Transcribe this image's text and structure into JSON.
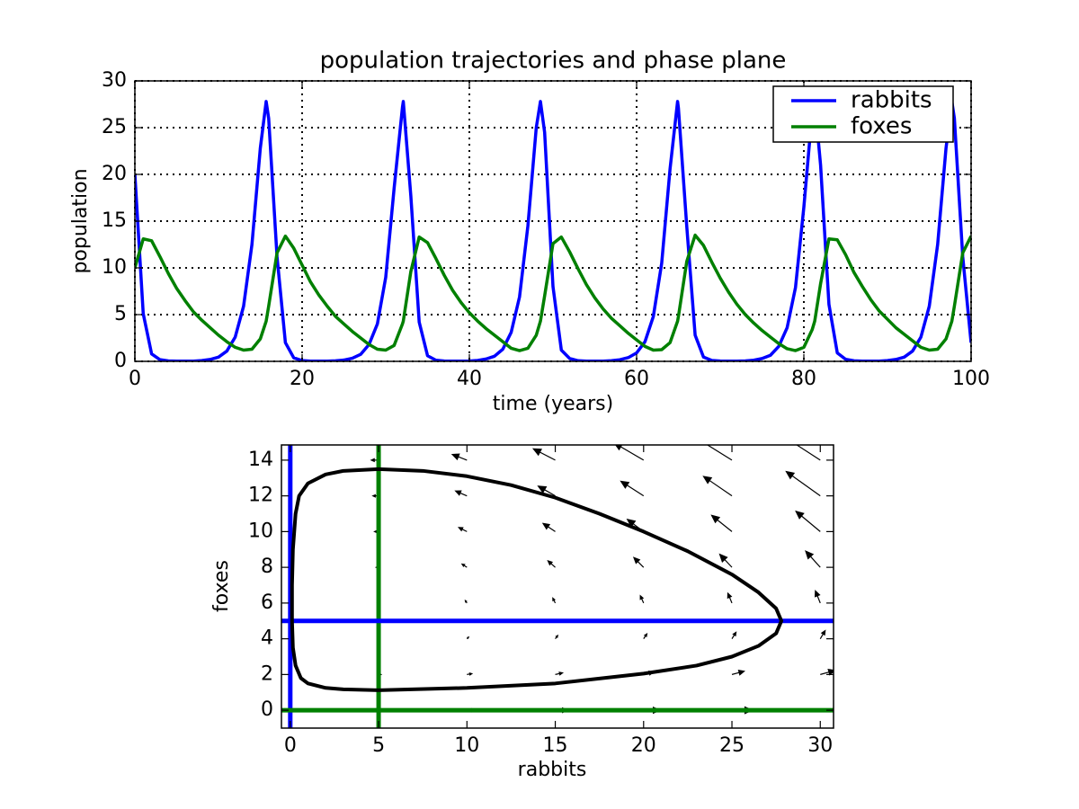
{
  "chart_data": [
    {
      "type": "line",
      "title": "population trajectories and phase plane",
      "xlabel": "time (years)",
      "ylabel": "population",
      "xlim": [
        0,
        100
      ],
      "ylim": [
        0,
        30
      ],
      "xticks": [
        0,
        20,
        40,
        60,
        80,
        100
      ],
      "yticks": [
        0,
        5,
        10,
        15,
        20,
        25,
        30
      ],
      "grid": true,
      "legend": "upper right",
      "x": [
        0,
        1,
        2,
        3,
        4,
        5,
        6,
        7,
        8,
        9,
        10,
        11,
        12,
        13,
        14,
        15,
        15.7,
        16,
        17,
        18,
        19,
        20,
        21,
        22,
        23,
        24,
        25,
        26,
        27,
        28,
        29,
        30,
        31,
        32,
        32.1,
        33,
        34,
        35,
        36,
        37,
        38,
        39,
        40,
        41,
        42,
        43,
        44,
        45,
        46,
        47,
        48,
        48.5,
        49,
        50,
        51,
        52,
        53,
        54,
        55,
        56,
        57,
        58,
        59,
        60,
        61,
        62,
        63,
        64,
        64.9,
        65,
        66,
        67,
        68,
        69,
        70,
        71,
        72,
        73,
        74,
        75,
        76,
        77,
        78,
        79,
        80,
        81,
        81.3,
        82,
        83,
        84,
        85,
        86,
        87,
        88,
        89,
        90,
        91,
        92,
        93,
        94,
        95,
        96,
        97,
        97.7,
        98,
        99,
        100
      ],
      "series": [
        {
          "name": "rabbits",
          "color": "#0000ff",
          "values": [
            20,
            5.1,
            0.8,
            0.18,
            0.05,
            0.02,
            0.02,
            0.03,
            0.08,
            0.2,
            0.45,
            1.1,
            2.6,
            5.9,
            12.5,
            22.8,
            27.8,
            26,
            11.2,
            2.0,
            0.38,
            0.08,
            0.03,
            0.02,
            0.02,
            0.06,
            0.14,
            0.33,
            0.75,
            1.8,
            4.0,
            9.0,
            18.5,
            27.2,
            27.8,
            17.7,
            4.2,
            0.6,
            0.12,
            0.04,
            0.02,
            0.02,
            0.04,
            0.1,
            0.25,
            0.55,
            1.3,
            3.1,
            6.9,
            14.5,
            25,
            27.8,
            24.5,
            8,
            1.2,
            0.3,
            0.07,
            0.03,
            0.02,
            0.02,
            0.07,
            0.17,
            0.4,
            0.9,
            2.1,
            4.8,
            10.5,
            20.6,
            27.8,
            27.1,
            14.4,
            2.8,
            0.46,
            0.1,
            0.04,
            0.02,
            0.02,
            0.05,
            0.12,
            0.3,
            0.65,
            1.6,
            3.6,
            7.9,
            16.5,
            26.7,
            27.8,
            21,
            6.1,
            0.9,
            0.22,
            0.06,
            0.02,
            0.02,
            0.03,
            0.08,
            0.2,
            0.45,
            1.1,
            2.6,
            5.9,
            12.5,
            22.8,
            27.8,
            26,
            11.2,
            2.0
          ]
        },
        {
          "name": "foxes",
          "color": "#008000",
          "values": [
            10,
            13.1,
            12.9,
            11.2,
            9.4,
            7.8,
            6.5,
            5.3,
            4.4,
            3.6,
            2.8,
            2.1,
            1.5,
            1.2,
            1.3,
            2.4,
            4.3,
            5.9,
            11.6,
            13.4,
            12.1,
            10.3,
            8.5,
            7.1,
            5.9,
            4.8,
            4.0,
            3.2,
            2.5,
            1.8,
            1.3,
            1.2,
            1.7,
            4.0,
            4.3,
            9.6,
            13.3,
            12.7,
            11.0,
            9.2,
            7.6,
            6.3,
            5.2,
            4.3,
            3.5,
            2.8,
            2.1,
            1.4,
            1.15,
            1.4,
            2.8,
            4.3,
            7.0,
            12.6,
            13.3,
            11.7,
            9.9,
            8.2,
            6.8,
            5.6,
            4.6,
            3.8,
            3.0,
            2.3,
            1.6,
            1.2,
            1.25,
            2.0,
            4.3,
            4.8,
            10.7,
            13.5,
            12.4,
            10.6,
            8.9,
            7.4,
            6.1,
            5.0,
            4.1,
            3.3,
            2.6,
            1.9,
            1.35,
            1.15,
            1.5,
            3.4,
            4.3,
            8.3,
            13.1,
            13.0,
            11.4,
            9.5,
            8.0,
            6.6,
            5.4,
            4.5,
            3.6,
            2.9,
            2.2,
            1.5,
            1.2,
            1.3,
            2.4,
            4.3,
            5.9,
            11.6,
            13.4
          ]
        }
      ]
    },
    {
      "type": "quiver",
      "xlabel": "rabbits",
      "ylabel": "foxes",
      "xlim": [
        -0.5,
        30.75
      ],
      "ylim": [
        -1,
        14.85
      ],
      "xticks": [
        0,
        5,
        10,
        15,
        20,
        25,
        30
      ],
      "yticks": [
        0,
        2,
        4,
        6,
        8,
        10,
        12,
        14
      ],
      "quiver": {
        "color": "#000000",
        "x": [
          0,
          5,
          10,
          15,
          20,
          25,
          30,
          0,
          5,
          10,
          15,
          20,
          25,
          30,
          0,
          5,
          10,
          15,
          20,
          25,
          30,
          0,
          5,
          10,
          15,
          20,
          25,
          30,
          0,
          5,
          10,
          15,
          20,
          25,
          30,
          0,
          5,
          10,
          15,
          20,
          25,
          30,
          0,
          5,
          10,
          15,
          20,
          25,
          30,
          0,
          5,
          10,
          15,
          20,
          25,
          30
        ],
        "y": [
          0,
          0,
          0,
          0,
          0,
          0,
          0,
          2,
          2,
          2,
          2,
          2,
          2,
          2,
          4,
          4,
          4,
          4,
          4,
          4,
          4,
          6,
          6,
          6,
          6,
          6,
          6,
          6,
          8,
          8,
          8,
          8,
          8,
          8,
          8,
          10,
          10,
          10,
          10,
          10,
          10,
          10,
          12,
          12,
          12,
          12,
          12,
          12,
          12,
          14,
          14,
          14,
          14,
          14,
          14,
          14
        ],
        "u": [
          0,
          5,
          10,
          15,
          20,
          25,
          30,
          0,
          3,
          6,
          9,
          12,
          15,
          18,
          0,
          1,
          2,
          3,
          4,
          5,
          6,
          0,
          -1,
          -2,
          -3,
          -4,
          -5,
          -6,
          0,
          -3,
          -6,
          -9,
          -12,
          -15,
          -18,
          0,
          -5,
          -10,
          -15,
          -20,
          -25,
          -30,
          0,
          -7,
          -14,
          -21,
          -28,
          -35,
          -42,
          0,
          -9,
          -18,
          -27,
          -36,
          -45,
          -54
        ],
        "v": [
          0,
          0,
          0,
          0,
          0,
          0,
          0,
          -1,
          0,
          1,
          2,
          3,
          4,
          5,
          -2,
          0,
          2,
          4,
          6,
          8,
          10,
          -3,
          0,
          3,
          6,
          9,
          12,
          15,
          -4,
          0,
          4,
          8,
          12,
          16,
          20,
          -5,
          0,
          5,
          10,
          15,
          20,
          25,
          -6,
          0,
          6,
          12,
          18,
          24,
          30,
          -7,
          0,
          7,
          14,
          21,
          28,
          35
        ]
      },
      "vlines": [
        {
          "x": 0,
          "color": "#0000ff"
        },
        {
          "x": 5,
          "color": "#008000"
        }
      ],
      "hlines": [
        {
          "y": 5,
          "color": "#0000ff"
        },
        {
          "y": 0,
          "color": "#008000"
        }
      ],
      "trajectory": {
        "color": "#000000",
        "rabbits": [
          5,
          10,
          15,
          20,
          23,
          25,
          26.5,
          27.5,
          27.8,
          27.5,
          26.5,
          25,
          22.5,
          20,
          17.5,
          15,
          12.5,
          10,
          7.5,
          5,
          3,
          2,
          1,
          0.5,
          0.3,
          0.15,
          0.1,
          0.1,
          0.15,
          0.3,
          0.6,
          1,
          2,
          3,
          5
        ],
        "foxes": [
          1.12,
          1.25,
          1.5,
          2.05,
          2.5,
          3.0,
          3.6,
          4.3,
          5,
          5.7,
          6.6,
          7.6,
          8.9,
          10.0,
          11.0,
          11.9,
          12.6,
          13.1,
          13.4,
          13.5,
          13.4,
          13.2,
          12.7,
          12.0,
          11,
          9,
          7,
          5,
          3.5,
          2.5,
          1.8,
          1.5,
          1.25,
          1.17,
          1.12
        ]
      }
    }
  ]
}
